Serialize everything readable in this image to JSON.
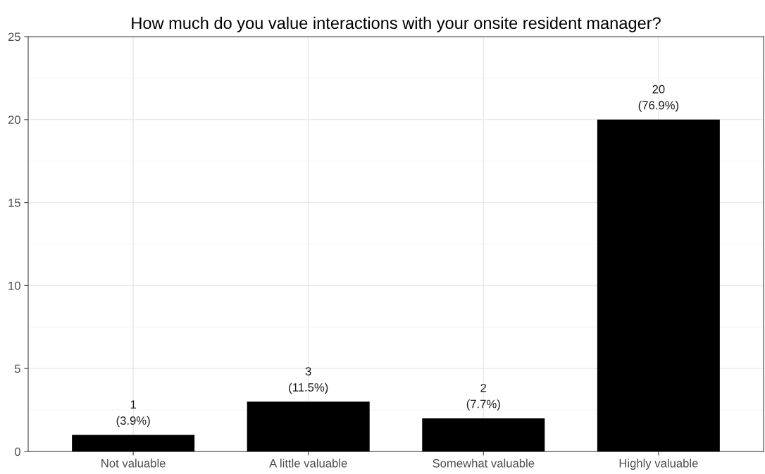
{
  "chart_data": {
    "type": "bar",
    "title": "How much do you value interactions with your onsite resident manager?",
    "categories": [
      "Not valuable",
      "A little valuable",
      "Somewhat valuable",
      "Highly valuable"
    ],
    "values": [
      1,
      3,
      2,
      20
    ],
    "color": "#000000",
    "value_labels": [
      "1\n(3.9%)",
      "3\n(11.5%)",
      "2\n(7.7%)",
      "20\n(76.9%)"
    ],
    "ylim": [
      0,
      25
    ],
    "yticks": [
      0,
      5,
      10,
      15,
      20,
      25
    ],
    "grid": true,
    "legend": false
  }
}
